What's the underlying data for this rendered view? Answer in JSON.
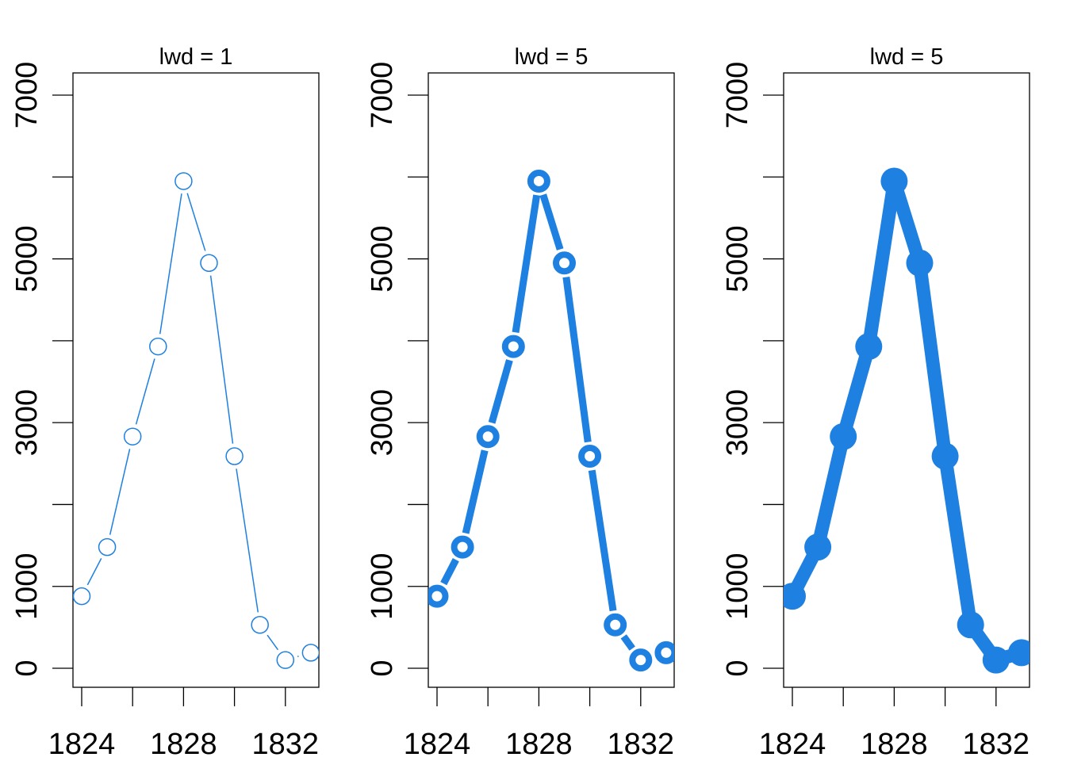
{
  "chart_data": [
    {
      "type": "line",
      "title": "lwd = 1",
      "style": "hollow-points",
      "color": "#1E80E0",
      "xlabel": "",
      "ylabel": "",
      "x": [
        1824,
        1825,
        1826,
        1827,
        1828,
        1829,
        1830,
        1831,
        1832,
        1833
      ],
      "values": [
        880,
        1480,
        2830,
        3930,
        5950,
        4950,
        2590,
        530,
        100,
        190
      ],
      "xlim": [
        1824,
        1833
      ],
      "ylim": [
        0,
        7000
      ],
      "x_ticks": [
        1824,
        1826,
        1828,
        1830,
        1832
      ],
      "x_tick_labels": [
        "1824",
        "1828",
        "1832"
      ],
      "y_ticks": [
        0,
        1000,
        2000,
        3000,
        4000,
        5000,
        6000,
        7000
      ],
      "y_tick_labels": [
        "0",
        "1000",
        "3000",
        "5000",
        "7000"
      ],
      "grid": false
    },
    {
      "type": "line",
      "title": "lwd = 5",
      "style": "thick-ring-points",
      "color": "#1E80E0",
      "xlabel": "",
      "ylabel": "",
      "x": [
        1824,
        1825,
        1826,
        1827,
        1828,
        1829,
        1830,
        1831,
        1832,
        1833
      ],
      "values": [
        880,
        1480,
        2830,
        3930,
        5950,
        4950,
        2590,
        530,
        100,
        190
      ],
      "xlim": [
        1824,
        1833
      ],
      "ylim": [
        0,
        7000
      ],
      "x_ticks": [
        1824,
        1826,
        1828,
        1830,
        1832
      ],
      "x_tick_labels": [
        "1824",
        "1828",
        "1832"
      ],
      "y_ticks": [
        0,
        1000,
        2000,
        3000,
        4000,
        5000,
        6000,
        7000
      ],
      "y_tick_labels": [
        "0",
        "1000",
        "3000",
        "5000",
        "7000"
      ],
      "grid": false
    },
    {
      "type": "line",
      "title": "lwd = 5",
      "style": "filled-points",
      "color": "#1E80E0",
      "xlabel": "",
      "ylabel": "",
      "x": [
        1824,
        1825,
        1826,
        1827,
        1828,
        1829,
        1830,
        1831,
        1832,
        1833
      ],
      "values": [
        880,
        1480,
        2830,
        3930,
        5950,
        4950,
        2590,
        530,
        100,
        190
      ],
      "xlim": [
        1824,
        1833
      ],
      "ylim": [
        0,
        7000
      ],
      "x_ticks": [
        1824,
        1826,
        1828,
        1830,
        1832
      ],
      "x_tick_labels": [
        "1824",
        "1828",
        "1832"
      ],
      "y_ticks": [
        0,
        1000,
        2000,
        3000,
        4000,
        5000,
        6000,
        7000
      ],
      "y_tick_labels": [
        "0",
        "1000",
        "3000",
        "5000",
        "7000"
      ],
      "grid": false
    }
  ]
}
